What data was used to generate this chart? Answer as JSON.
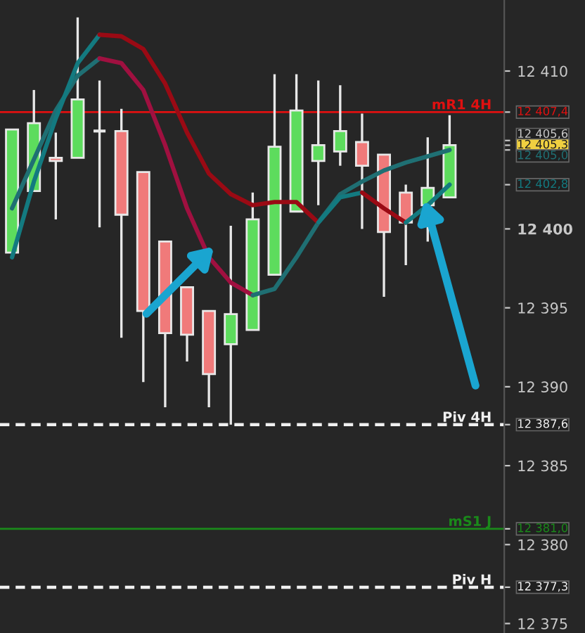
{
  "chart_data": {
    "type": "candlestick",
    "categories": [
      null,
      null,
      null,
      null,
      null,
      null,
      null,
      null,
      null,
      null,
      null,
      null,
      null,
      null,
      null,
      null,
      null,
      null,
      null,
      null,
      null
    ],
    "ohlc": [
      [
        12398.5,
        12406.3,
        12398.5,
        12406.3
      ],
      [
        12402.4,
        12408.8,
        12402.4,
        12406.7
      ],
      [
        12404.5,
        12406.1,
        12400.6,
        12404.3
      ],
      [
        12404.5,
        12413.4,
        12404.5,
        12408.2
      ],
      [
        12406.2,
        12409.4,
        12400.1,
        12406.2
      ],
      [
        12406.2,
        12407.6,
        12393.1,
        12400.9
      ],
      [
        12403.6,
        12403.6,
        12390.3,
        12394.8
      ],
      [
        12399.2,
        12399.2,
        12388.7,
        12393.4
      ],
      [
        12396.3,
        12396.3,
        12391.6,
        12393.3
      ],
      [
        12394.8,
        12394.8,
        12388.7,
        12390.8
      ],
      [
        12392.7,
        12400.2,
        12387.6,
        12394.6
      ],
      [
        12393.6,
        12402.3,
        12393.6,
        12400.6
      ],
      [
        12397.1,
        12409.8,
        12397.1,
        12405.2
      ],
      [
        12401.1,
        12409.8,
        12401.1,
        12407.5
      ],
      [
        12404.3,
        12409.4,
        12401.5,
        12405.3
      ],
      [
        12404.9,
        12409.1,
        12404.0,
        12406.2
      ],
      [
        12405.5,
        12407.3,
        12400.0,
        12404.0
      ],
      [
        12404.7,
        12404.7,
        12395.7,
        12399.8
      ],
      [
        12402.3,
        12402.8,
        12397.7,
        12400.4
      ],
      [
        12401.5,
        12405.8,
        12399.2,
        12402.6
      ],
      [
        12402.0,
        12407.2,
        12402.0,
        12405.3
      ]
    ],
    "series": [
      {
        "type": "line",
        "color": "#1f6f73",
        "values": [
          12401.3,
          12404.4,
          12407.5,
          12409.7,
          12410.8,
          null,
          null,
          null,
          null,
          null,
          null,
          null,
          null,
          null,
          null,
          null,
          null,
          null,
          null,
          null,
          null
        ]
      },
      {
        "type": "line",
        "color": "#a01040",
        "values": [
          null,
          null,
          null,
          null,
          12410.8,
          12410.5,
          12408.8,
          12405.3,
          12401.3,
          12398.2,
          12396.6,
          12395.8,
          null,
          null,
          null,
          null,
          null,
          null,
          null,
          null,
          null
        ]
      },
      {
        "type": "line",
        "color": "#1f6f73",
        "values": [
          null,
          null,
          null,
          null,
          null,
          null,
          null,
          null,
          null,
          null,
          null,
          12395.8,
          12396.2,
          12398.2,
          12400.4,
          12402.2,
          12403.0,
          12403.7,
          12404.2,
          12404.6,
          12405.0
        ]
      },
      {
        "type": "line",
        "color": "#137a80",
        "values": [
          12398.2,
          12403.0,
          12407.0,
          12410.5,
          12412.3,
          null,
          null,
          null,
          null,
          null,
          null,
          null,
          null,
          null,
          null,
          null,
          null,
          null,
          null,
          null,
          null
        ]
      },
      {
        "type": "line",
        "color": "#9a0a14",
        "values": [
          null,
          null,
          null,
          null,
          12412.3,
          12412.2,
          12411.4,
          12409.2,
          12406.1,
          12403.5,
          12402.2,
          12401.5,
          12401.7,
          12401.7,
          12400.4,
          null,
          null,
          null,
          null,
          null,
          null
        ]
      },
      {
        "type": "line",
        "color": "#137a80",
        "values": [
          null,
          null,
          null,
          null,
          null,
          null,
          null,
          null,
          null,
          null,
          null,
          null,
          null,
          null,
          12400.4,
          12402.0,
          12402.3,
          null,
          null,
          null,
          null
        ]
      },
      {
        "type": "line",
        "color": "#9a0a14",
        "values": [
          null,
          null,
          null,
          null,
          null,
          null,
          null,
          null,
          null,
          null,
          null,
          null,
          null,
          null,
          null,
          null,
          12402.3,
          12401.3,
          12400.4,
          null,
          null
        ]
      },
      {
        "type": "line",
        "color": "#137a80",
        "values": [
          null,
          null,
          null,
          null,
          null,
          null,
          null,
          null,
          null,
          null,
          null,
          null,
          null,
          null,
          null,
          null,
          null,
          null,
          12400.4,
          12401.5,
          12402.8
        ]
      }
    ],
    "ylim": [
      12374.4,
      12414.5
    ],
    "yticks": [
      {
        "value": 12410,
        "label": "12 410"
      },
      {
        "value": 12400,
        "label": "12 400"
      },
      {
        "value": 12395,
        "label": "12 395"
      },
      {
        "value": 12390,
        "label": "12 390"
      },
      {
        "value": 12385,
        "label": "12 385"
      },
      {
        "value": 12380,
        "label": "12 380"
      },
      {
        "value": 12375,
        "label": "12 375"
      },
      {
        "value": 12407.4,
        "label": "12 407,4"
      },
      {
        "value": 12405.6,
        "label": "12 405,6"
      },
      {
        "value": 12405.3,
        "label": "12 405,3"
      },
      {
        "value": 12405.0,
        "label": "12 405,0"
      },
      {
        "value": 12402.8,
        "label": "12 402,8"
      },
      {
        "value": 12387.6,
        "label": "12 387,6"
      },
      {
        "value": 12381.0,
        "label": "12 381,0"
      },
      {
        "value": 12377.3,
        "label": "12 377,3"
      }
    ],
    "ref_lines": [
      {
        "axis": "y",
        "value": 12407.4,
        "label": "mR1 4H",
        "color": "#e01010",
        "line_style": "solid"
      },
      {
        "axis": "y",
        "value": 12387.6,
        "label": "Piv 4H",
        "color": "#f0f0f0",
        "line_style": "dashed"
      },
      {
        "axis": "y",
        "value": 12381.0,
        "label": "mS1 J",
        "color": "#1a8a1a",
        "line_style": "solid"
      },
      {
        "axis": "y",
        "value": 12377.3,
        "label": "Piv H",
        "color": "#f0f0f0",
        "line_style": "dashed"
      }
    ],
    "tick_labels": "y",
    "grid": false,
    "legend": false
  }
}
